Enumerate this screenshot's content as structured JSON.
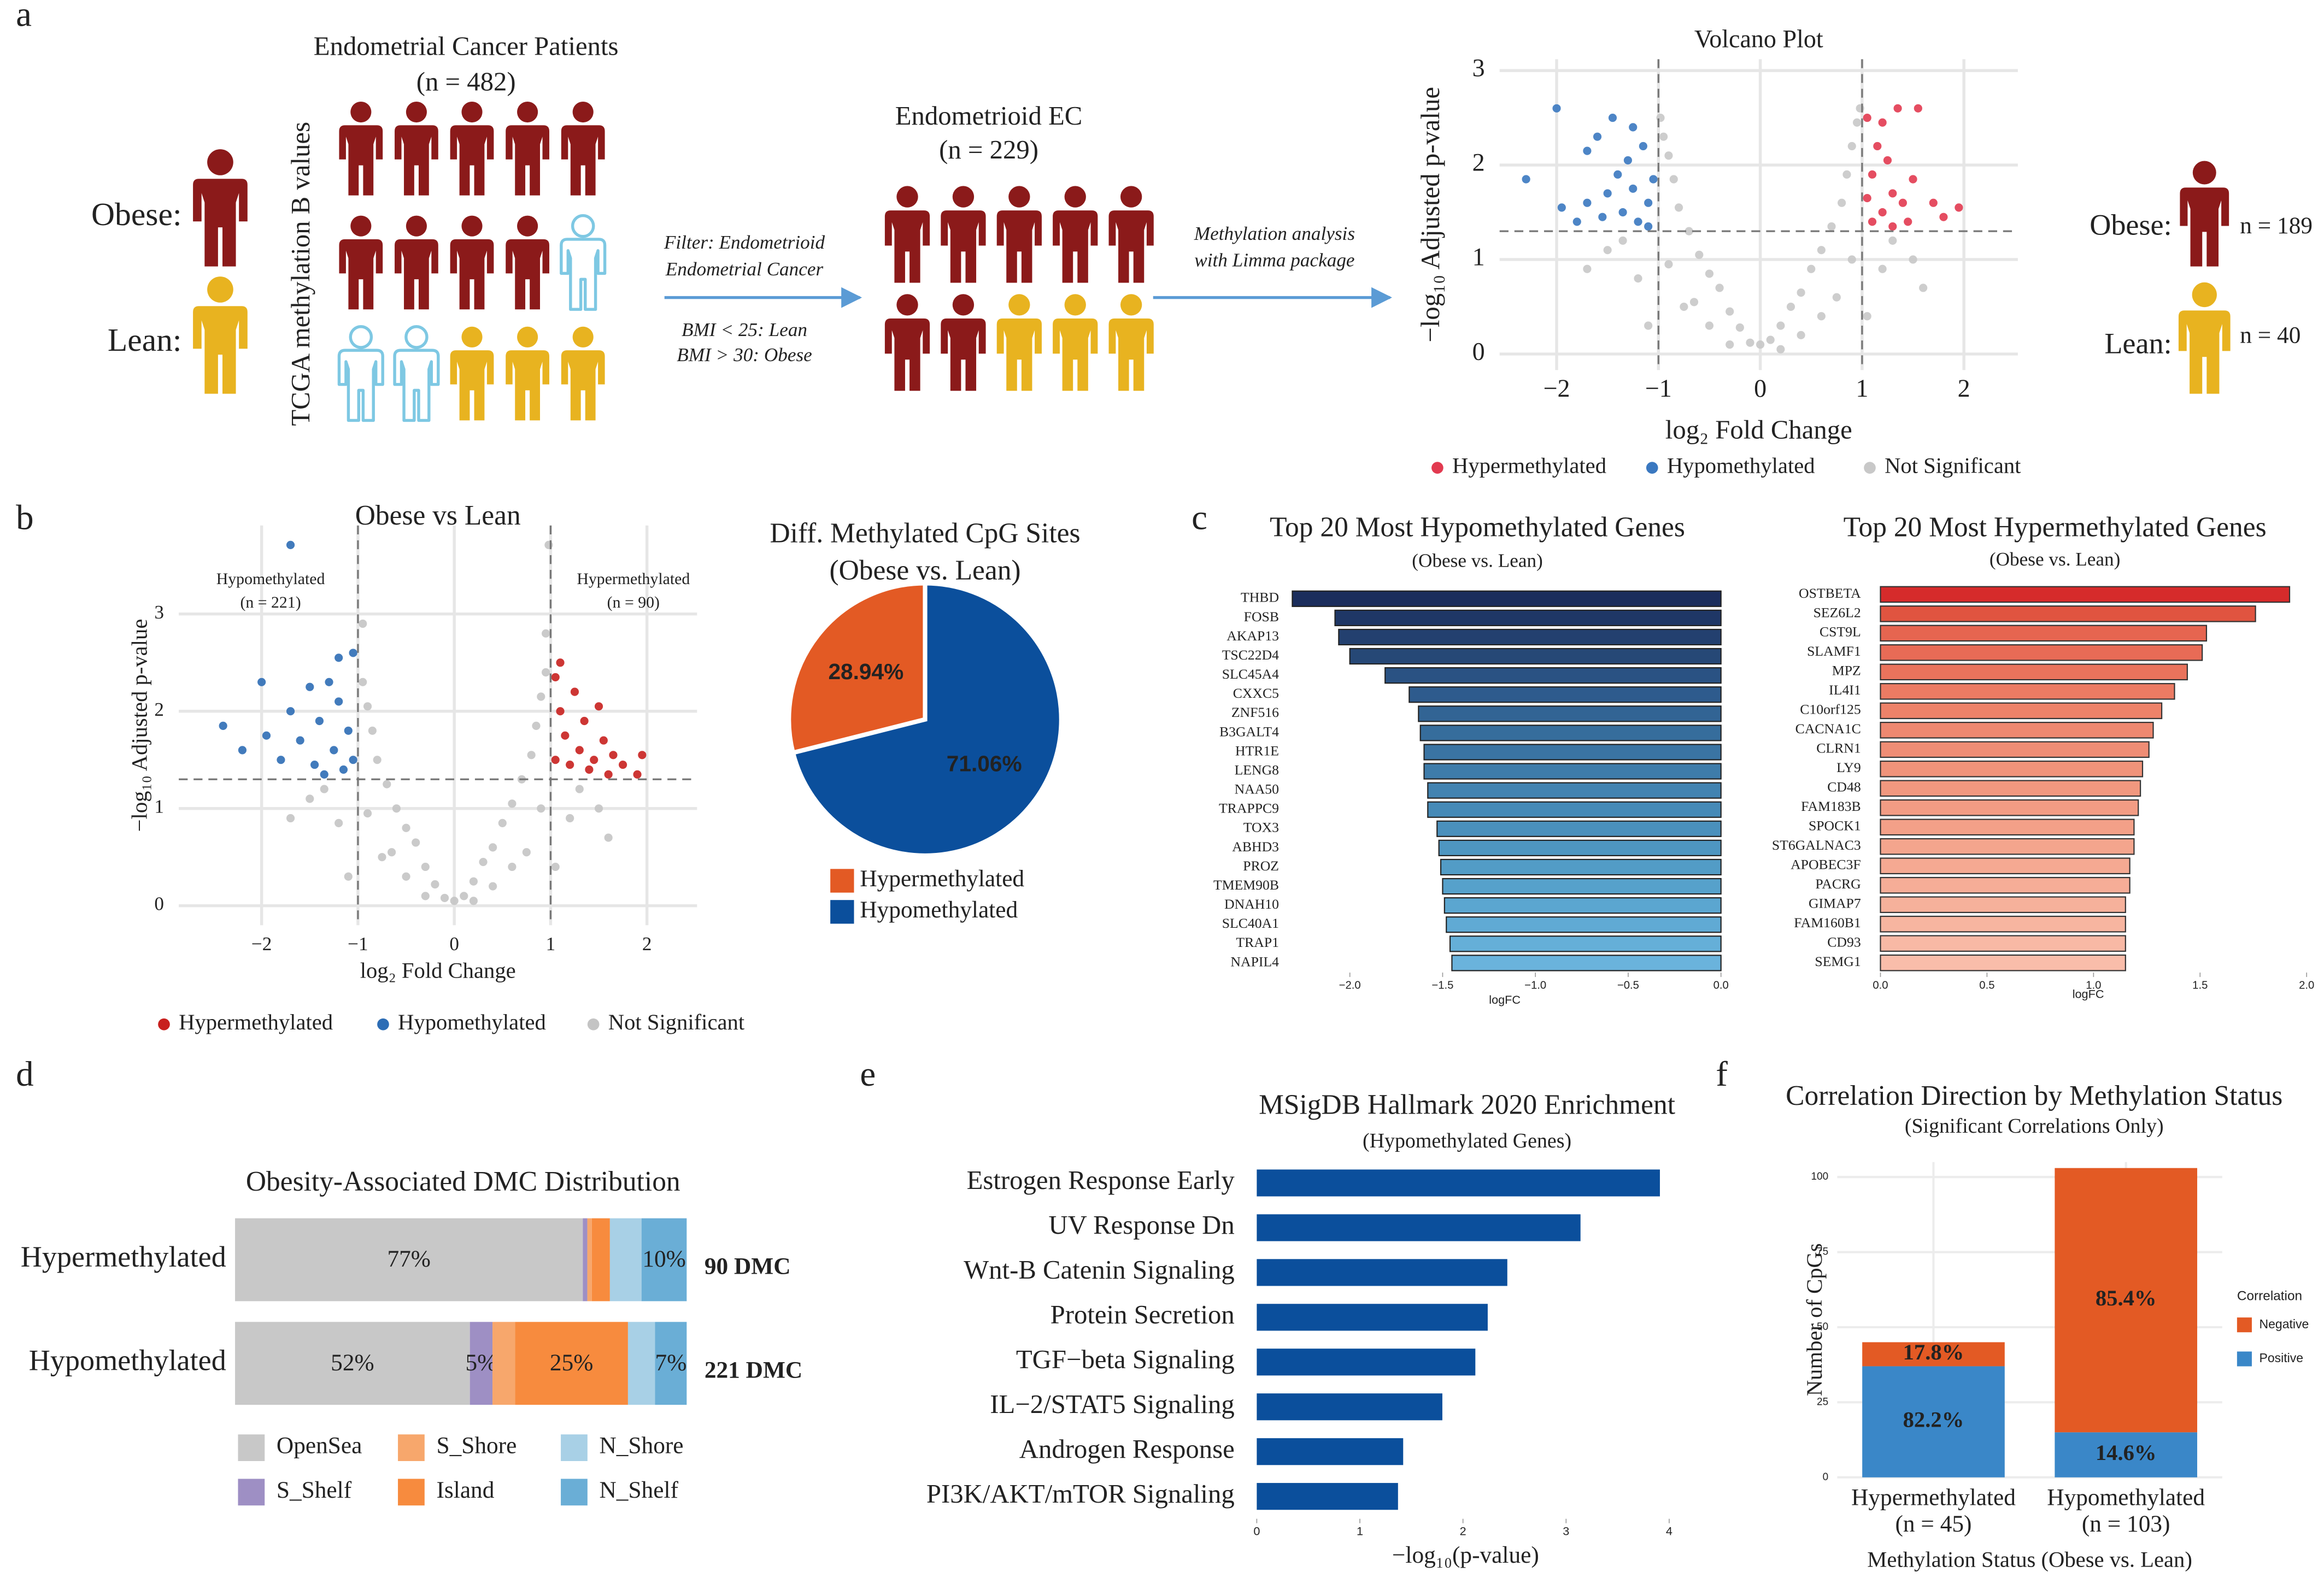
{
  "figure": {
    "panel_labels": [
      "a",
      "b",
      "c",
      "d",
      "e",
      "f"
    ]
  },
  "schematic": {
    "cohort_title": "Endometrial Cancer Patients",
    "cohort_n": "(n = 482)",
    "obese": "Obese:",
    "lean": "Lean:",
    "axis_label": "TCGA methylation B values",
    "filter_1": "Filter: Endometrioid",
    "filter_2": "Endometrial Cancer",
    "bmi_lean": "BMI < 25: Lean",
    "bmi_obese": "BMI > 30: Obese",
    "subset_title": "Endometrioid EC",
    "subset_n": "(n = 229)",
    "method_1": "Methylation analysis",
    "method_2": "with Limma package",
    "obese_right": "Obese:",
    "obese_n": "n = 189",
    "lean_right": "Lean:",
    "lean_n": "n = 40"
  },
  "chart_data": [
    {
      "type": "scatter",
      "title": "Volcano Plot",
      "xlabel": "log₂ Fold Change",
      "ylabel": "−log₁₀ Adjusted p-value",
      "xlim": [
        -2.56,
        2.53
      ],
      "ylim": [
        -0.17,
        3.12
      ],
      "xticks": [
        {
          "value": -2,
          "label": "−2"
        },
        {
          "value": -1,
          "label": "−1"
        },
        0,
        1,
        2
      ],
      "yticks": [
        0,
        1,
        2,
        3
      ],
      "grid": true,
      "legend": "bottom",
      "thresholds": {
        "x": [
          -1,
          1
        ],
        "y": 1.3
      },
      "series": [
        {
          "name": "Hypermethylated",
          "color": "#e23a50",
          "x": [
            1.05,
            1.1,
            1.15,
            1.2,
            1.25,
            1.3,
            1.35,
            1.45,
            1.5,
            1.55,
            1.7,
            1.8,
            1.95,
            1.1,
            1.2,
            1.4,
            1.05,
            1.3
          ],
          "values": [
            2.5,
            1.9,
            2.2,
            1.5,
            2.05,
            1.7,
            2.6,
            1.4,
            1.85,
            2.6,
            1.6,
            1.45,
            1.55,
            1.4,
            2.45,
            1.6,
            1.65,
            1.35
          ]
        },
        {
          "name": "Hypomethylated",
          "color": "#3a78c0",
          "x": [
            -2.3,
            -2,
            -1.95,
            -1.7,
            -1.8,
            -1.6,
            -1.5,
            -1.45,
            -1.4,
            -1.35,
            -1.3,
            -1.25,
            -1.2,
            -1.15,
            -1.1,
            -1.05,
            -1.55,
            -1.25,
            -1.7,
            -1.1
          ],
          "values": [
            1.85,
            2.6,
            1.55,
            2.15,
            1.4,
            2.3,
            1.7,
            2.5,
            1.9,
            1.5,
            2.05,
            1.75,
            1.4,
            2.2,
            1.6,
            1.85,
            1.45,
            2.4,
            1.6,
            1.35
          ]
        },
        {
          "name": "Not Significant",
          "color": "#c8c8c8",
          "x": [
            0,
            0.1,
            -0.1,
            0.2,
            -0.2,
            0.3,
            -0.3,
            0.4,
            -0.4,
            0.5,
            -0.5,
            0.6,
            -0.6,
            0.7,
            -0.7,
            0.8,
            -0.8,
            0.85,
            -0.85,
            0.9,
            -0.9,
            0.95,
            -0.95,
            0.75,
            -0.75,
            1.2,
            -1.2,
            1.5,
            -1.5,
            1.05,
            -1.1,
            0.4,
            -0.5,
            0.6,
            -0.65,
            1.3,
            -1.35,
            0.9,
            -0.9,
            0.2,
            -0.3,
            1.6,
            -1.7,
            0.98,
            -0.98
          ],
          "values": [
            0.1,
            0.15,
            0.12,
            0.3,
            0.28,
            0.5,
            0.45,
            0.65,
            0.7,
            0.9,
            0.85,
            1.1,
            1.05,
            1.35,
            1.3,
            1.6,
            1.55,
            1.9,
            1.85,
            2.2,
            2.1,
            2.45,
            2.3,
            0.6,
            0.5,
            0.9,
            0.8,
            1.0,
            1.1,
            0.4,
            0.3,
            0.2,
            0.3,
            0.4,
            0.55,
            1.2,
            1.2,
            1.0,
            0.95,
            0.05,
            0.1,
            0.7,
            0.9,
            2.6,
            2.5
          ]
        }
      ]
    },
    {
      "type": "scatter",
      "title": "Obese vs Lean",
      "xlabel": "log₂ Fold Change",
      "ylabel": "−log₁₀ Adjusted p-value",
      "xlim": [
        -2.86,
        2.52
      ],
      "ylim": [
        -0.2,
        3.91
      ],
      "xticks": [
        {
          "value": -2,
          "label": "−2"
        },
        {
          "value": -1,
          "label": "−1"
        },
        0,
        1,
        2
      ],
      "yticks": [
        0,
        1,
        2,
        3
      ],
      "grid": true,
      "legend": "bottom",
      "thresholds": {
        "x": [
          -1,
          1
        ],
        "y": 1.3
      },
      "annotations": [
        "Hypomethylated",
        "(n = 221)",
        "Hypermethylated",
        "(n = 90)"
      ],
      "series": [
        {
          "name": "Hypermethylated",
          "color": "#c8201e",
          "x": [
            1.05,
            1.1,
            1.15,
            1.2,
            1.25,
            1.3,
            1.35,
            1.4,
            1.5,
            1.55,
            1.6,
            1.75,
            1.9,
            1.95,
            1.1,
            1.45,
            1.05,
            1.65
          ],
          "values": [
            1.5,
            2.0,
            1.75,
            1.45,
            2.2,
            1.6,
            1.9,
            1.4,
            2.05,
            1.7,
            1.35,
            1.45,
            1.35,
            1.55,
            2.5,
            1.5,
            2.35,
            1.55
          ]
        },
        {
          "name": "Hypomethylated",
          "color": "#2d6db5",
          "x": [
            -2.4,
            -2.2,
            -2.0,
            -1.95,
            -1.8,
            -1.7,
            -1.6,
            -1.5,
            -1.45,
            -1.4,
            -1.3,
            -1.25,
            -1.2,
            -1.15,
            -1.1,
            -1.05,
            -1.35,
            -1.05,
            -1.7,
            -1.2
          ],
          "values": [
            1.85,
            1.6,
            2.3,
            1.75,
            1.5,
            2.0,
            1.7,
            2.25,
            1.45,
            1.9,
            2.3,
            1.6,
            2.1,
            1.4,
            1.8,
            2.6,
            1.35,
            1.5,
            3.71,
            2.55
          ]
        },
        {
          "name": "Not Significant",
          "color": "#c4c4c4",
          "x": [
            0,
            0.1,
            -0.1,
            0.2,
            -0.2,
            0.3,
            -0.3,
            0.4,
            -0.4,
            0.5,
            -0.5,
            0.6,
            -0.6,
            0.7,
            -0.7,
            0.8,
            -0.8,
            0.85,
            -0.85,
            0.9,
            -0.9,
            0.95,
            -0.95,
            0.75,
            -0.75,
            1.2,
            -1.2,
            1.5,
            -1.5,
            1.05,
            -1.1,
            0.4,
            -0.5,
            0.6,
            -0.65,
            1.3,
            -1.35,
            0.9,
            -0.9,
            0.2,
            -0.3,
            1.6,
            -1.7,
            0.98,
            0.95,
            -0.95
          ],
          "values": [
            0.05,
            0.1,
            0.08,
            0.25,
            0.22,
            0.45,
            0.4,
            0.6,
            0.65,
            0.85,
            0.8,
            1.05,
            1.0,
            1.3,
            1.25,
            1.55,
            1.5,
            1.85,
            1.8,
            2.15,
            2.05,
            2.4,
            2.3,
            0.55,
            0.5,
            0.9,
            0.85,
            1.0,
            1.1,
            0.4,
            0.3,
            0.2,
            0.3,
            0.4,
            0.55,
            1.2,
            1.2,
            1.0,
            0.95,
            0.05,
            0.1,
            0.7,
            0.9,
            3.71,
            2.8,
            2.9
          ]
        }
      ]
    },
    {
      "type": "pie",
      "title": "Diff. Methylated CpG Sites",
      "subtitle": "(Obese vs. Lean)",
      "categories": [
        "Hypermethylated",
        "Hypomethylated"
      ],
      "values": [
        28.94,
        71.06
      ],
      "value_labels": [
        "28.94%",
        "71.06%"
      ],
      "colors": [
        "#e35a24",
        "#0b4f9c"
      ]
    },
    {
      "type": "barh",
      "title": "Top 20 Most Hypomethylated Genes",
      "subtitle": "(Obese vs. Lean)",
      "xlabel": "logFC",
      "categories": [
        "THBD",
        "FOSB",
        "AKAP13",
        "TSC22D4",
        "SLC45A4",
        "CXXC5",
        "ZNF516",
        "B3GALT4",
        "HTR1E",
        "LENG8",
        "NAA50",
        "TRAPPC9",
        "TOX3",
        "ABHD3",
        "PROZ",
        "TMEM90B",
        "DNAH10",
        "SLC40A1",
        "TRAP1",
        "NAPIL4"
      ],
      "values": [
        -2.31,
        -2.08,
        -2.06,
        -2.0,
        -1.81,
        -1.68,
        -1.63,
        -1.62,
        -1.6,
        -1.6,
        -1.58,
        -1.58,
        -1.53,
        -1.52,
        -1.51,
        -1.5,
        -1.49,
        -1.48,
        -1.46,
        -1.45
      ],
      "colors": [
        "#1b2d5c",
        "#1f3766",
        "#23406f",
        "#264876",
        "#2a5283",
        "#2e5b8d",
        "#326494",
        "#366d9c",
        "#3a74a3",
        "#3e7caa",
        "#4283b1",
        "#468ab7",
        "#4a90bc",
        "#4e96c1",
        "#529cc6",
        "#56a1cb",
        "#5ba6d0",
        "#60aad4",
        "#65afd8",
        "#6ab3dc"
      ],
      "xlim": [
        -2.35,
        0.02
      ],
      "xticks": [
        {
          "value": -2,
          "label": "−2.0"
        },
        {
          "value": -1.5,
          "label": "−1.5"
        },
        {
          "value": -1,
          "label": "−1.0"
        },
        {
          "value": -0.5,
          "label": "−0.5"
        },
        {
          "value": 0,
          "label": "0.0"
        }
      ]
    },
    {
      "type": "barh",
      "title": "Top 20 Most Hypermethylated Genes",
      "subtitle": "(Obese vs. Lean)",
      "xlabel": "logFC",
      "categories": [
        "OSTBETA",
        "SEZ6L2",
        "CST9L",
        "SLAMF1",
        "MPZ",
        "IL4I1",
        "C10orf125",
        "CACNA1C",
        "CLRN1",
        "LY9",
        "CD48",
        "FAM183B",
        "SPOCK1",
        "ST6GALNAC3",
        "APOBEC3F",
        "PACRG",
        "GIMAP7",
        "FAM160B1",
        "CD93",
        "SEMG1"
      ],
      "values": [
        1.92,
        1.76,
        1.53,
        1.51,
        1.44,
        1.38,
        1.32,
        1.28,
        1.26,
        1.23,
        1.22,
        1.21,
        1.19,
        1.19,
        1.17,
        1.17,
        1.15,
        1.15,
        1.15,
        1.15
      ],
      "colors": [
        "#d62b2b",
        "#e05440",
        "#e66550",
        "#e86b56",
        "#ea735c",
        "#ec7b63",
        "#ed8269",
        "#ee8870",
        "#ef8d75",
        "#f0937a",
        "#f1987f",
        "#f29c84",
        "#f3a088",
        "#f4a58d",
        "#f5a992",
        "#f6ad97",
        "#f6b19b",
        "#f7b5a0",
        "#f8b9a5",
        "#f9bdaa"
      ],
      "xlim": [
        -0.05,
        2.0
      ],
      "xticks": [
        {
          "value": 0,
          "label": "0.0"
        },
        {
          "value": 0.5,
          "label": "0.5"
        },
        {
          "value": 1,
          "label": "1.0"
        },
        {
          "value": 1.5,
          "label": "1.5"
        },
        {
          "value": 2,
          "label": "2.0"
        }
      ]
    },
    {
      "type": "stacked_barh",
      "title": "Obesity-Associated DMC Distribution",
      "categories": [
        "Hypermethylated",
        "Hypomethylated"
      ],
      "annotations": [
        "90 DMC",
        "221 DMC"
      ],
      "xlim": [
        0,
        100
      ],
      "series": [
        {
          "name": "OpenSea",
          "color": "#c8c8c8",
          "values": [
            77,
            52
          ],
          "value_labels": [
            "77%",
            "52%"
          ]
        },
        {
          "name": "S_Shelf",
          "color": "#9e8fc4",
          "values": [
            1,
            5
          ],
          "value_labels": [
            null,
            "5%"
          ]
        },
        {
          "name": "S_Shore",
          "color": "#f7a76c",
          "values": [
            1,
            5
          ],
          "value_labels": [
            null,
            null
          ]
        },
        {
          "name": "Island",
          "color": "#f78b3e",
          "values": [
            4,
            25
          ],
          "value_labels": [
            null,
            "25%"
          ]
        },
        {
          "name": "N_Shore",
          "color": "#a8d0e6",
          "values": [
            7,
            6
          ],
          "value_labels": [
            null,
            null
          ]
        },
        {
          "name": "N_Shelf",
          "color": "#6aaed6",
          "values": [
            10,
            7
          ],
          "value_labels": [
            "10%",
            "7%"
          ]
        }
      ]
    },
    {
      "type": "barh",
      "title": "MSigDB Hallmark 2020 Enrichment",
      "subtitle": "(Hypomethylated Genes)",
      "xlabel": "−log₁₀(p-value)",
      "categories": [
        "Estrogen Response Early",
        "UV Response Dn",
        "Wnt-B Catenin Signaling",
        "Protein Secretion",
        "TGF−beta Signaling",
        "IL−2/STAT5 Signaling",
        "Androgen Response",
        "PI3K/AKT/mTOR  Signaling"
      ],
      "values": [
        3.91,
        3.14,
        2.43,
        2.24,
        2.12,
        1.8,
        1.42,
        1.37
      ],
      "color": "#0b4f9c",
      "xlim": [
        0,
        4.05
      ],
      "xticks": [
        0,
        1,
        2,
        3,
        4
      ]
    },
    {
      "type": "stacked_bar",
      "title": "Correlation Direction by Methylation Status",
      "subtitle": "(Significant Correlations Only)",
      "xlabel": "Methylation Status (Obese vs. Lean)",
      "ylabel": "Number of CpGs",
      "legend_title": "Correlation",
      "categories": [
        "Hypermethylated",
        "Hypomethylated"
      ],
      "category_notes": [
        "(n = 45)",
        "(n = 103)"
      ],
      "ylim": [
        0,
        105
      ],
      "yticks": [
        0,
        25,
        50,
        75,
        100
      ],
      "grid": true,
      "series": [
        {
          "name": "Positive",
          "color": "#3a87c8",
          "values": [
            37,
            15
          ],
          "share_labels": [
            "82.2%",
            "14.6%"
          ]
        },
        {
          "name": "Negative",
          "color": "#e35a24",
          "values": [
            8,
            88
          ],
          "share_labels": [
            "17.8%",
            "85.4%"
          ]
        }
      ]
    }
  ]
}
